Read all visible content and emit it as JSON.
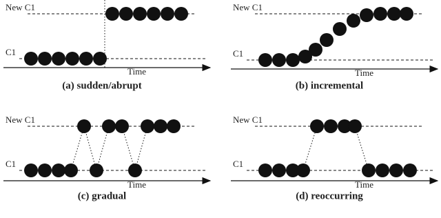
{
  "panels": [
    {
      "caption": "(a) sudden/abrupt",
      "upper_label": "New C1",
      "lower_label": "C1",
      "axis_label": "Time"
    },
    {
      "caption": "(b) incremental",
      "upper_label": "New C1",
      "lower_label": "C1",
      "axis_label": "Time"
    },
    {
      "caption": "(c) gradual",
      "upper_label": "New C1",
      "lower_label": "C1",
      "axis_label": "Time"
    },
    {
      "caption": "(d) reoccurring",
      "upper_label": "New C1",
      "lower_label": "C1",
      "axis_label": "Time"
    }
  ]
}
